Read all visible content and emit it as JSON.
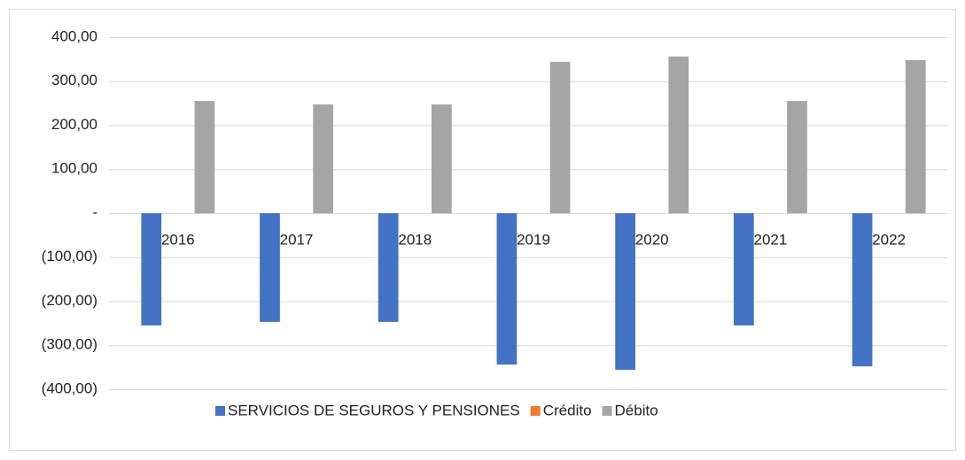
{
  "chart_data": {
    "type": "bar",
    "categories": [
      "2016",
      "2017",
      "2018",
      "2019",
      "2020",
      "2021",
      "2022"
    ],
    "series": [
      {
        "name": "SERVICIOS DE SEGUROS Y PENSIONES",
        "color": "#4472c4",
        "values": [
          -255,
          -247,
          -247,
          -344,
          -356,
          -255,
          -348
        ]
      },
      {
        "name": "Crédito",
        "color": "#ed7d31",
        "values": [
          0,
          0,
          0,
          0,
          0,
          0,
          0
        ]
      },
      {
        "name": "Débito",
        "color": "#a5a5a5",
        "values": [
          255,
          247,
          247,
          344,
          356,
          255,
          348
        ]
      }
    ],
    "ylim": [
      -400,
      400
    ],
    "yticks": [
      {
        "value": 400,
        "label": "400,00"
      },
      {
        "value": 300,
        "label": "300,00"
      },
      {
        "value": 200,
        "label": "200,00"
      },
      {
        "value": 100,
        "label": "100,00"
      },
      {
        "value": 0,
        "label": "-"
      },
      {
        "value": -100,
        "label": "(100,00)"
      },
      {
        "value": -200,
        "label": "(200,00)"
      },
      {
        "value": -300,
        "label": "(300,00)"
      },
      {
        "value": -400,
        "label": "(400,00)"
      }
    ],
    "grid": true,
    "legend": "bottom"
  }
}
